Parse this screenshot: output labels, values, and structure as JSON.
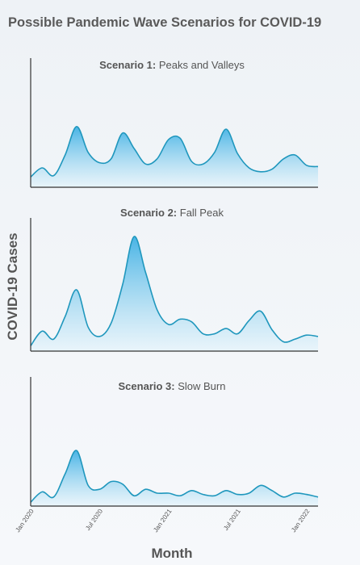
{
  "title": "Possible Pandemic Wave Scenarios for COVID-19",
  "ylabel": "COVID-19 Cases",
  "xlabel": "Month",
  "colors": {
    "line": "#1f97bd",
    "fill_top": "#3fb0e4",
    "fill_bottom": "#e2f3fb",
    "axis": "#333333"
  },
  "chart_data": [
    {
      "type": "area",
      "title_bold": "Scenario 1:",
      "title_rest": " Peaks and Valleys",
      "x_range": [
        0,
        25
      ],
      "ylim": [
        0,
        1
      ],
      "x_ticks": [
        {
          "x": 0,
          "label": "Jan 2020"
        },
        {
          "x": 6,
          "label": "Jul 2020"
        },
        {
          "x": 12,
          "label": "Jan 2021"
        },
        {
          "x": 18,
          "label": "Jul 2021"
        },
        {
          "x": 24,
          "label": "Jan 2022"
        }
      ],
      "x": [
        0,
        1,
        2,
        3,
        4,
        5,
        6,
        7,
        8,
        9,
        10,
        11,
        12,
        13,
        14,
        15,
        16,
        17,
        18,
        19,
        20,
        21,
        22,
        23,
        24,
        25
      ],
      "y": [
        0.08,
        0.15,
        0.09,
        0.25,
        0.47,
        0.27,
        0.19,
        0.22,
        0.42,
        0.3,
        0.18,
        0.22,
        0.37,
        0.38,
        0.2,
        0.18,
        0.27,
        0.45,
        0.26,
        0.15,
        0.12,
        0.14,
        0.22,
        0.25,
        0.17,
        0.16
      ]
    },
    {
      "type": "area",
      "title_bold": "Scenario 2:",
      "title_rest": " Fall Peak",
      "x_range": [
        0,
        25
      ],
      "ylim": [
        0,
        1
      ],
      "x_ticks": [
        {
          "x": 0,
          "label": "Jan 2020"
        },
        {
          "x": 6,
          "label": "Jul 2020"
        },
        {
          "x": 12,
          "label": "Jan 2021"
        },
        {
          "x": 18,
          "label": "Jul 2021"
        },
        {
          "x": 24,
          "label": "Jan 2022"
        }
      ],
      "x": [
        0,
        1,
        2,
        3,
        4,
        5,
        6,
        7,
        8,
        9,
        10,
        11,
        12,
        13,
        14,
        15,
        16,
        17,
        18,
        19,
        20,
        21,
        22,
        23,
        24,
        25
      ],
      "y": [
        0.04,
        0.15,
        0.09,
        0.26,
        0.46,
        0.18,
        0.11,
        0.21,
        0.5,
        0.86,
        0.59,
        0.31,
        0.2,
        0.24,
        0.22,
        0.13,
        0.13,
        0.17,
        0.13,
        0.23,
        0.3,
        0.16,
        0.07,
        0.09,
        0.12,
        0.11
      ]
    },
    {
      "type": "area",
      "title_bold": "Scenario 3:",
      "title_rest": " Slow Burn",
      "x_range": [
        0,
        25
      ],
      "ylim": [
        0,
        1
      ],
      "x_ticks": [
        {
          "x": 0,
          "label": "Jan 2020"
        },
        {
          "x": 6,
          "label": "Jul 2020"
        },
        {
          "x": 12,
          "label": "Jan 2021"
        },
        {
          "x": 18,
          "label": "Jul 2021"
        },
        {
          "x": 24,
          "label": "Jan 2022"
        }
      ],
      "x": [
        0,
        1,
        2,
        3,
        4,
        5,
        6,
        7,
        8,
        9,
        10,
        11,
        12,
        13,
        14,
        15,
        16,
        17,
        18,
        19,
        20,
        21,
        22,
        23,
        24,
        25
      ],
      "y": [
        0.03,
        0.11,
        0.07,
        0.25,
        0.43,
        0.16,
        0.13,
        0.19,
        0.17,
        0.08,
        0.13,
        0.1,
        0.1,
        0.08,
        0.12,
        0.09,
        0.08,
        0.12,
        0.09,
        0.1,
        0.16,
        0.12,
        0.07,
        0.1,
        0.09,
        0.07
      ]
    }
  ]
}
